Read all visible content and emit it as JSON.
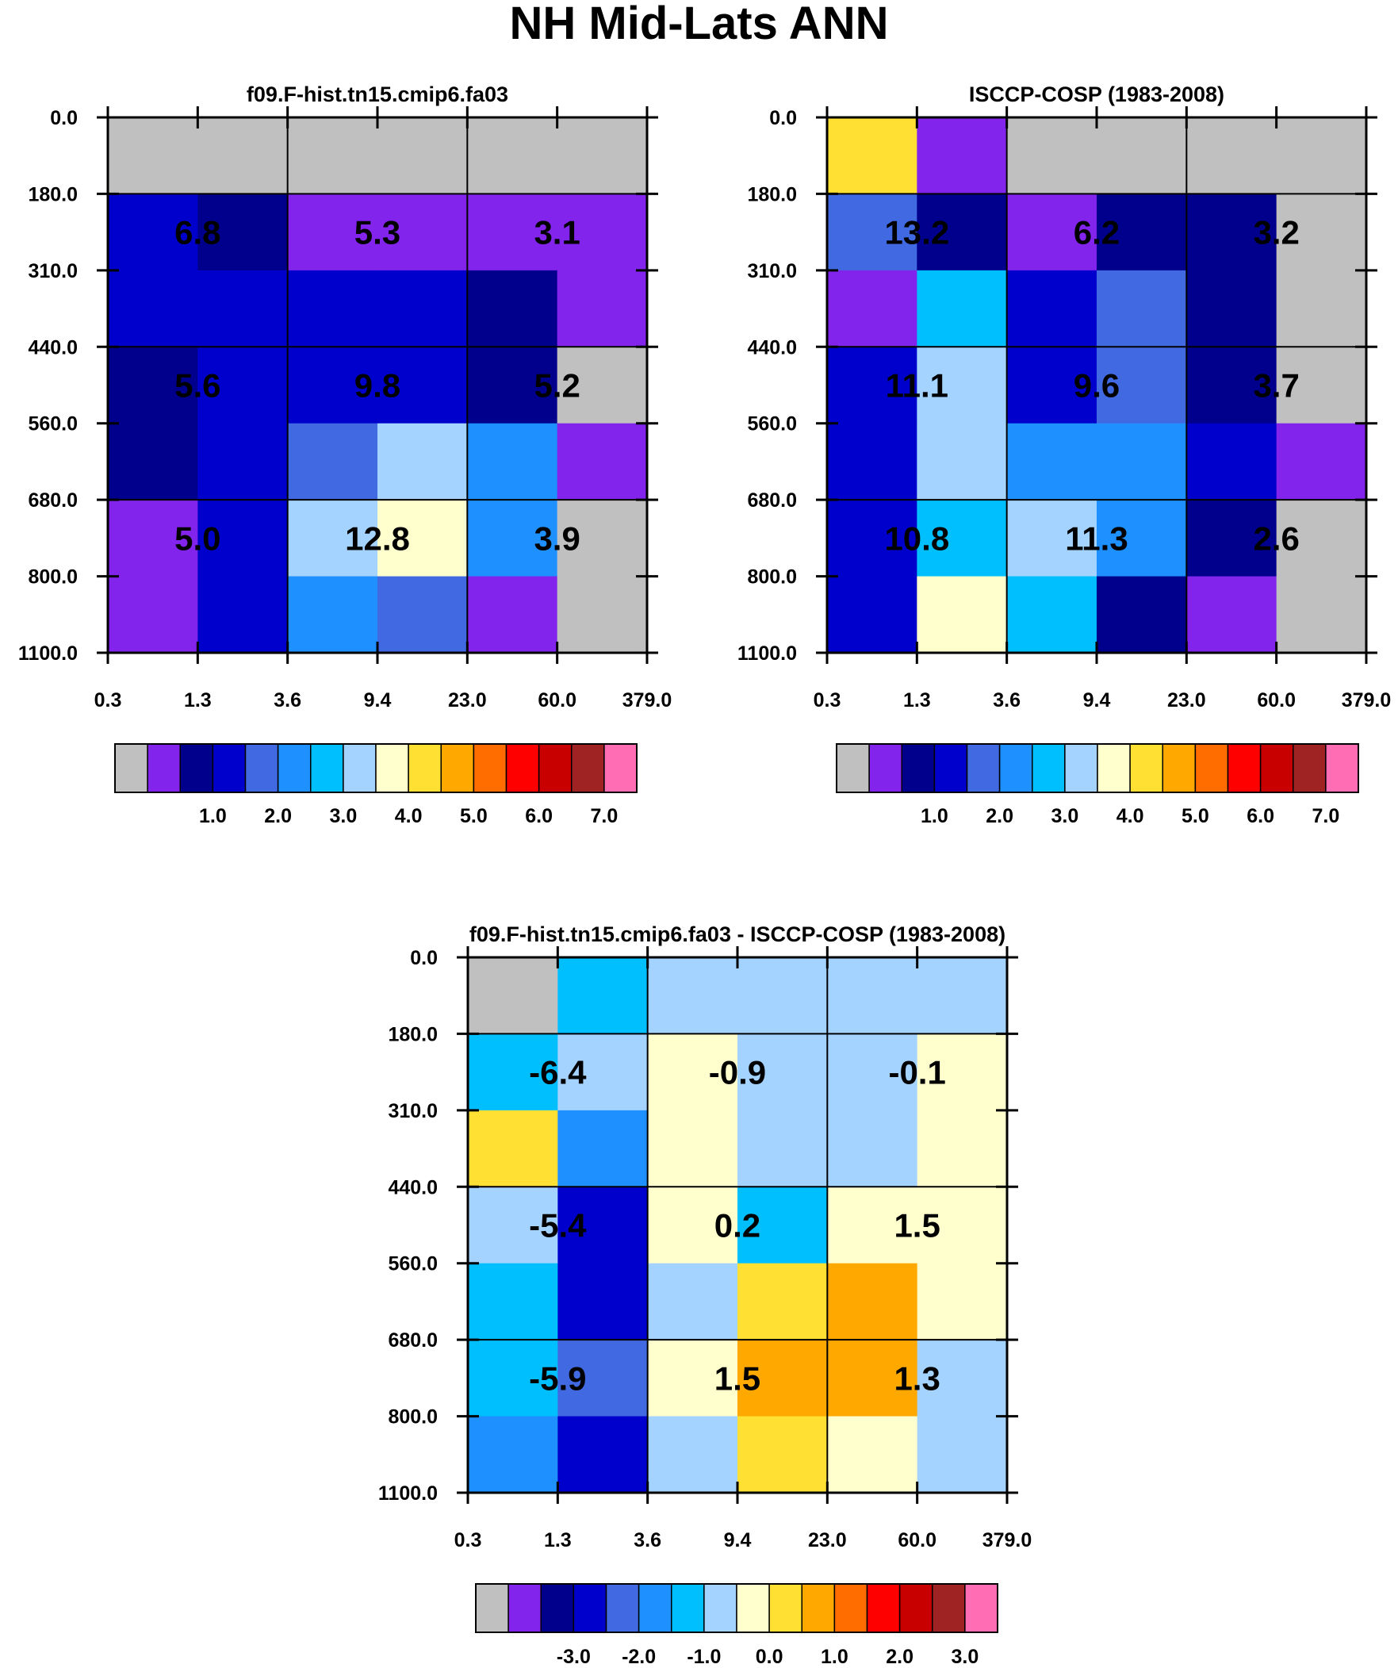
{
  "title": "NH Mid-Lats ANN",
  "palette": [
    "#c0c0c0",
    "#8224ec",
    "#00008c",
    "#0000cd",
    "#4169e1",
    "#1e90ff",
    "#00bfff",
    "#a4d3ff",
    "#ffffcd",
    "#ffe033",
    "#ffa800",
    "#ff6d00",
    "#ff0000",
    "#c80000",
    "#a02323",
    "#ff6eb4"
  ],
  "chart_data": [
    {
      "type": "heatmap",
      "title": "f09.F-hist.tn15.cmip6.fa03",
      "x_tick_labels": [
        "0.3",
        "1.3",
        "3.6",
        "9.4",
        "23.0",
        "60.0",
        "379.0"
      ],
      "y_tick_labels": [
        "0.0",
        "180.0",
        "310.0",
        "440.0",
        "560.0",
        "680.0",
        "800.0",
        "1100.0"
      ],
      "cells": [
        [
          0,
          0,
          0,
          0,
          0,
          0
        ],
        [
          3,
          2,
          1,
          1,
          1,
          1
        ],
        [
          3,
          3,
          3,
          3,
          2,
          1
        ],
        [
          2,
          3,
          3,
          3,
          2,
          0
        ],
        [
          2,
          3,
          4,
          7,
          5,
          1
        ],
        [
          1,
          3,
          7,
          8,
          5,
          0
        ],
        [
          1,
          3,
          5,
          4,
          1,
          0
        ]
      ],
      "box_values": [
        [
          "6.8",
          "5.3",
          "3.1"
        ],
        [
          "5.6",
          "9.8",
          "5.2"
        ],
        [
          "5.0",
          "12.8",
          "3.9"
        ]
      ],
      "colorbar_labels": [
        "1.0",
        "2.0",
        "3.0",
        "4.0",
        "5.0",
        "6.0",
        "7.0"
      ]
    },
    {
      "type": "heatmap",
      "title": "ISCCP-COSP (1983-2008)",
      "x_tick_labels": [
        "0.3",
        "1.3",
        "3.6",
        "9.4",
        "23.0",
        "60.0",
        "379.0"
      ],
      "y_tick_labels": [
        "0.0",
        "180.0",
        "310.0",
        "440.0",
        "560.0",
        "680.0",
        "800.0",
        "1100.0"
      ],
      "cells": [
        [
          9,
          1,
          0,
          0,
          0,
          0
        ],
        [
          4,
          2,
          1,
          2,
          2,
          0
        ],
        [
          1,
          6,
          3,
          4,
          2,
          0
        ],
        [
          3,
          7,
          3,
          4,
          2,
          0
        ],
        [
          3,
          7,
          5,
          5,
          3,
          1
        ],
        [
          3,
          6,
          7,
          5,
          2,
          0
        ],
        [
          3,
          8,
          6,
          2,
          1,
          0
        ]
      ],
      "box_values": [
        [
          "13.2",
          "6.2",
          "3.2"
        ],
        [
          "11.1",
          "9.6",
          "3.7"
        ],
        [
          "10.8",
          "11.3",
          "2.6"
        ]
      ],
      "colorbar_labels": [
        "1.0",
        "2.0",
        "3.0",
        "4.0",
        "5.0",
        "6.0",
        "7.0"
      ]
    },
    {
      "type": "heatmap",
      "title": "f09.F-hist.tn15.cmip6.fa03 - ISCCP-COSP (1983-2008)",
      "x_tick_labels": [
        "0.3",
        "1.3",
        "3.6",
        "9.4",
        "23.0",
        "60.0",
        "379.0"
      ],
      "y_tick_labels": [
        "0.0",
        "180.0",
        "310.0",
        "440.0",
        "560.0",
        "680.0",
        "800.0",
        "1100.0"
      ],
      "cells": [
        [
          0,
          6,
          7,
          7,
          7,
          7
        ],
        [
          6,
          7,
          8,
          7,
          7,
          8
        ],
        [
          9,
          5,
          8,
          7,
          7,
          8
        ],
        [
          7,
          3,
          8,
          6,
          8,
          8
        ],
        [
          6,
          3,
          7,
          9,
          10,
          8
        ],
        [
          6,
          4,
          8,
          10,
          10,
          7
        ],
        [
          5,
          3,
          7,
          9,
          8,
          7
        ]
      ],
      "box_values": [
        [
          "-6.4",
          "-0.9",
          "-0.1"
        ],
        [
          "-5.4",
          "0.2",
          "1.5"
        ],
        [
          "-5.9",
          "1.5",
          "1.3"
        ]
      ],
      "colorbar_labels": [
        "-3.0",
        "-2.0",
        "-1.0",
        "0.0",
        "1.0",
        "2.0",
        "3.0"
      ]
    }
  ]
}
